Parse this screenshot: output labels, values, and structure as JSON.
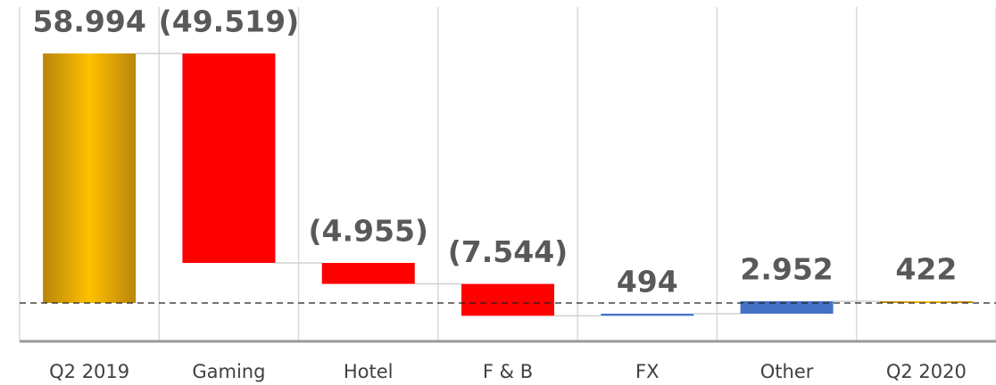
{
  "chart_data": {
    "type": "waterfall",
    "categories": [
      "Q2 2019",
      "Gaming",
      "Hotel",
      "F & B",
      "FX",
      "Other",
      "Q2 2020"
    ],
    "values": [
      58994,
      -49519,
      -4955,
      -7544,
      494,
      2952,
      422
    ],
    "value_labels": [
      "58.994",
      "(49.519)",
      "(4.955)",
      "(7.544)",
      "494",
      "2.952",
      "422"
    ],
    "totals": [
      true,
      false,
      false,
      false,
      false,
      false,
      true
    ],
    "total_color": "#ffc000",
    "decrease_color": "#ff0000",
    "increase_color": "#4472c4",
    "grid": true
  }
}
